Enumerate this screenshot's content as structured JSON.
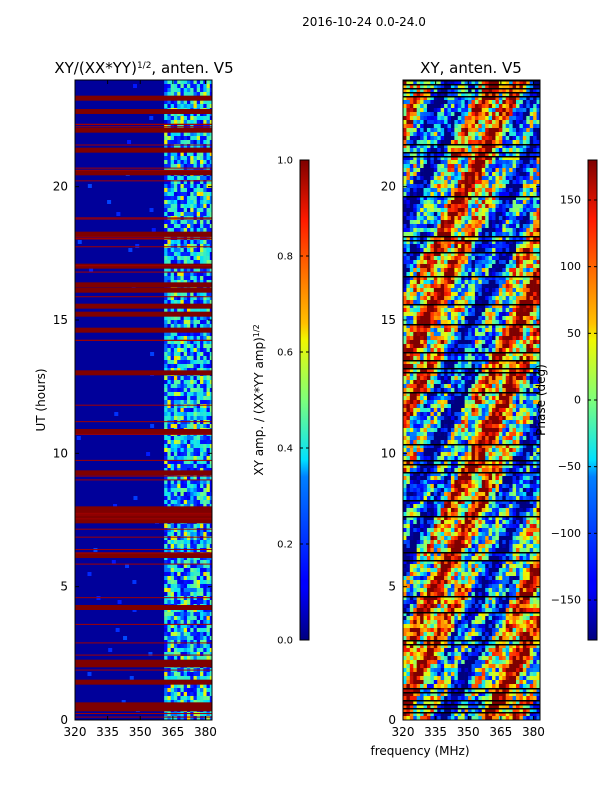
{
  "figure_title": "2016-10-24 0.0-24.0",
  "chart_data": [
    {
      "type": "heatmap",
      "title": "XY/(XX*YY)^1/2, anten. V5",
      "title_main": "XY/(XX*YY)",
      "title_sup": "1/2",
      "title_rest": ", anten. V5",
      "xlabel": "",
      "ylabel": "UT (hours)",
      "xlim": [
        320,
        383
      ],
      "ylim": [
        0,
        24
      ],
      "xticks": [
        "320",
        "335",
        "350",
        "365",
        "380"
      ],
      "xtick_values": [
        320,
        335,
        350,
        365,
        380
      ],
      "yticks": [
        "0",
        "5",
        "10",
        "15",
        "20"
      ],
      "ytick_values": [
        0,
        5,
        10,
        15,
        20
      ],
      "flagged_hours": [
        0.4,
        0.55,
        1.4,
        2.05,
        2.15,
        4.2,
        6.15,
        7.45,
        7.6,
        7.75,
        7.9,
        9.25,
        10.8,
        13.0,
        14.6,
        15.2,
        15.5,
        16.1,
        16.3,
        17.0,
        18.2,
        20.5,
        21.35,
        22.1,
        22.8,
        23.3
      ],
      "colorbar": {
        "label": "XY amp. / (XX*YY amp)^1/2",
        "label_main": "XY amp. / (XX*YY amp)",
        "label_sup": "1/2",
        "range": [
          0.0,
          1.0
        ],
        "ticks": [
          "0.0",
          "0.2",
          "0.4",
          "0.6",
          "0.8",
          "1.0"
        ],
        "tick_values": [
          0.0,
          0.2,
          0.4,
          0.6,
          0.8,
          1.0
        ]
      }
    },
    {
      "type": "heatmap",
      "title": "XY, anten. V5",
      "xlabel": "frequency (MHz)",
      "ylabel": "",
      "xlim": [
        320,
        383
      ],
      "ylim": [
        0,
        24
      ],
      "xticks": [
        "320",
        "335",
        "350",
        "365",
        "380"
      ],
      "xtick_values": [
        320,
        335,
        350,
        365,
        380
      ],
      "yticks": [
        "0",
        "5",
        "10",
        "15",
        "20"
      ],
      "ytick_values": [
        0,
        5,
        10,
        15,
        20
      ],
      "colorbar": {
        "label": "Phase (deg)",
        "range": [
          -180,
          180
        ],
        "ticks": [
          "−150",
          "−100",
          "−50",
          "0",
          "50",
          "100",
          "150"
        ],
        "tick_values": [
          -150,
          -100,
          -50,
          0,
          50,
          100,
          150
        ]
      }
    }
  ]
}
